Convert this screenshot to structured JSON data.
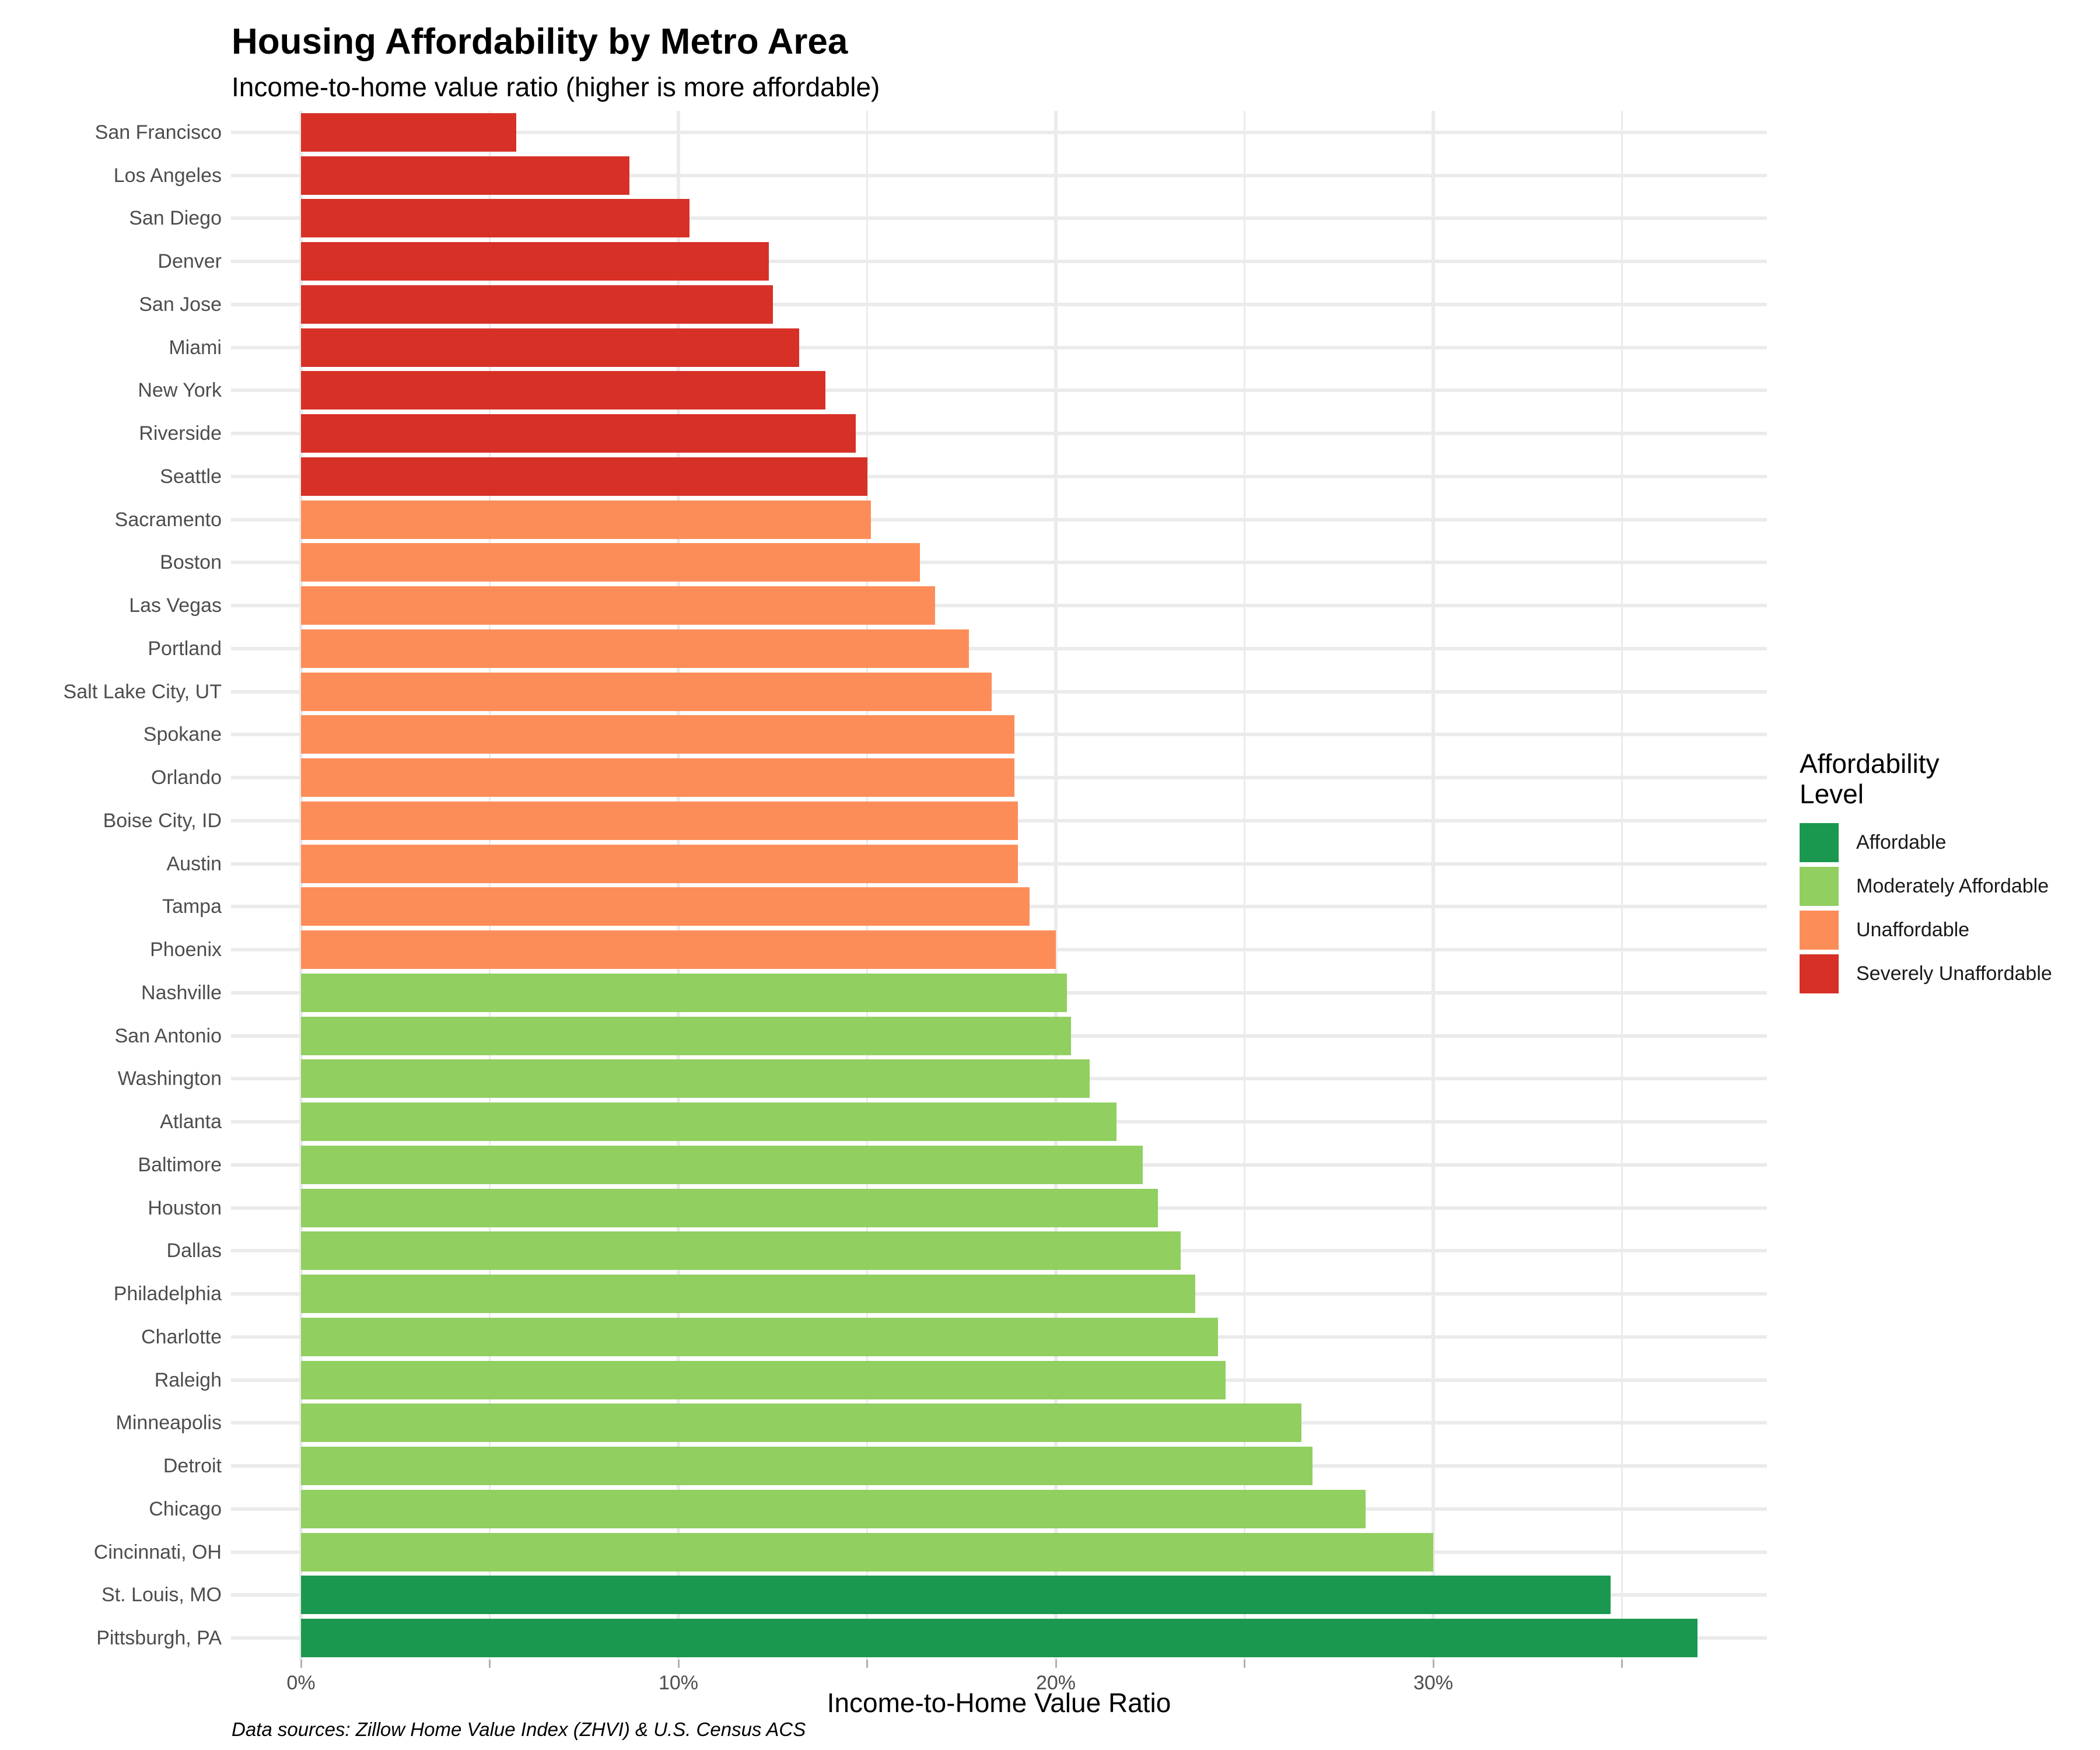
{
  "header": {
    "title": "Housing Affordability by Metro Area",
    "subtitle": "Income-to-home value ratio (higher is more affordable)"
  },
  "caption": "Data sources: Zillow Home Value Index (ZHVI) & U.S. Census ACS",
  "legend": {
    "title": "Affordability Level",
    "title_lines": [
      "Affordability",
      "Level"
    ],
    "entries": [
      {
        "label": "Affordable",
        "color": "#1A9850"
      },
      {
        "label": "Moderately Affordable",
        "color": "#91CF60"
      },
      {
        "label": "Unaffordable",
        "color": "#FC8D59"
      },
      {
        "label": "Severely Unaffordable",
        "color": "#D73027"
      }
    ]
  },
  "chart_data": {
    "type": "bar",
    "orientation": "horizontal",
    "title": "Housing Affordability by Metro Area",
    "subtitle": "Income-to-home value ratio (higher is more affordable)",
    "xlabel": "Income-to-Home Value Ratio",
    "xlim": [
      0,
      38.9
    ],
    "x_ticks": [
      {
        "label": "0%",
        "value": 0
      },
      {
        "label": "10%",
        "value": 10
      },
      {
        "label": "20%",
        "value": 20
      },
      {
        "label": "30%",
        "value": 30
      }
    ],
    "x_minor_break_values": [
      5,
      15,
      25,
      35
    ],
    "grid": true,
    "legend_position": "right",
    "value_unit": "percent",
    "categories": [
      "San Francisco",
      "Los Angeles",
      "San Diego",
      "Denver",
      "San Jose",
      "Miami",
      "New York",
      "Riverside",
      "Seattle",
      "Sacramento",
      "Boston",
      "Las Vegas",
      "Portland",
      "Salt Lake City, UT",
      "Spokane",
      "Orlando",
      "Boise City, ID",
      "Austin",
      "Tampa",
      "Phoenix",
      "Nashville",
      "San Antonio",
      "Washington",
      "Atlanta",
      "Baltimore",
      "Houston",
      "Dallas",
      "Philadelphia",
      "Charlotte",
      "Raleigh",
      "Minneapolis",
      "Detroit",
      "Chicago",
      "Cincinnati, OH",
      "St. Louis, MO",
      "Pittsburgh, PA"
    ],
    "values": [
      5.7,
      8.7,
      10.3,
      12.4,
      12.5,
      13.2,
      13.9,
      14.7,
      15.0,
      15.1,
      16.4,
      16.8,
      17.7,
      18.3,
      18.9,
      18.9,
      19.0,
      19.0,
      19.3,
      20.0,
      20.3,
      20.4,
      20.9,
      21.6,
      22.3,
      22.7,
      23.3,
      23.7,
      24.3,
      24.5,
      26.5,
      26.8,
      28.2,
      30.0,
      34.7,
      37.0
    ],
    "levels": [
      "Severely Unaffordable",
      "Severely Unaffordable",
      "Severely Unaffordable",
      "Severely Unaffordable",
      "Severely Unaffordable",
      "Severely Unaffordable",
      "Severely Unaffordable",
      "Severely Unaffordable",
      "Severely Unaffordable",
      "Unaffordable",
      "Unaffordable",
      "Unaffordable",
      "Unaffordable",
      "Unaffordable",
      "Unaffordable",
      "Unaffordable",
      "Unaffordable",
      "Unaffordable",
      "Unaffordable",
      "Unaffordable",
      "Moderately Affordable",
      "Moderately Affordable",
      "Moderately Affordable",
      "Moderately Affordable",
      "Moderately Affordable",
      "Moderately Affordable",
      "Moderately Affordable",
      "Moderately Affordable",
      "Moderately Affordable",
      "Moderately Affordable",
      "Moderately Affordable",
      "Moderately Affordable",
      "Moderately Affordable",
      "Moderately Affordable",
      "Affordable",
      "Affordable"
    ],
    "level_colors": {
      "Affordable": "#1A9850",
      "Moderately Affordable": "#91CF60",
      "Unaffordable": "#FC8D59",
      "Severely Unaffordable": "#D73027"
    },
    "grid_color": "#EBEBEB",
    "tick_color": "#B0B0B0",
    "axis_text_color": "#4D4D4D"
  }
}
